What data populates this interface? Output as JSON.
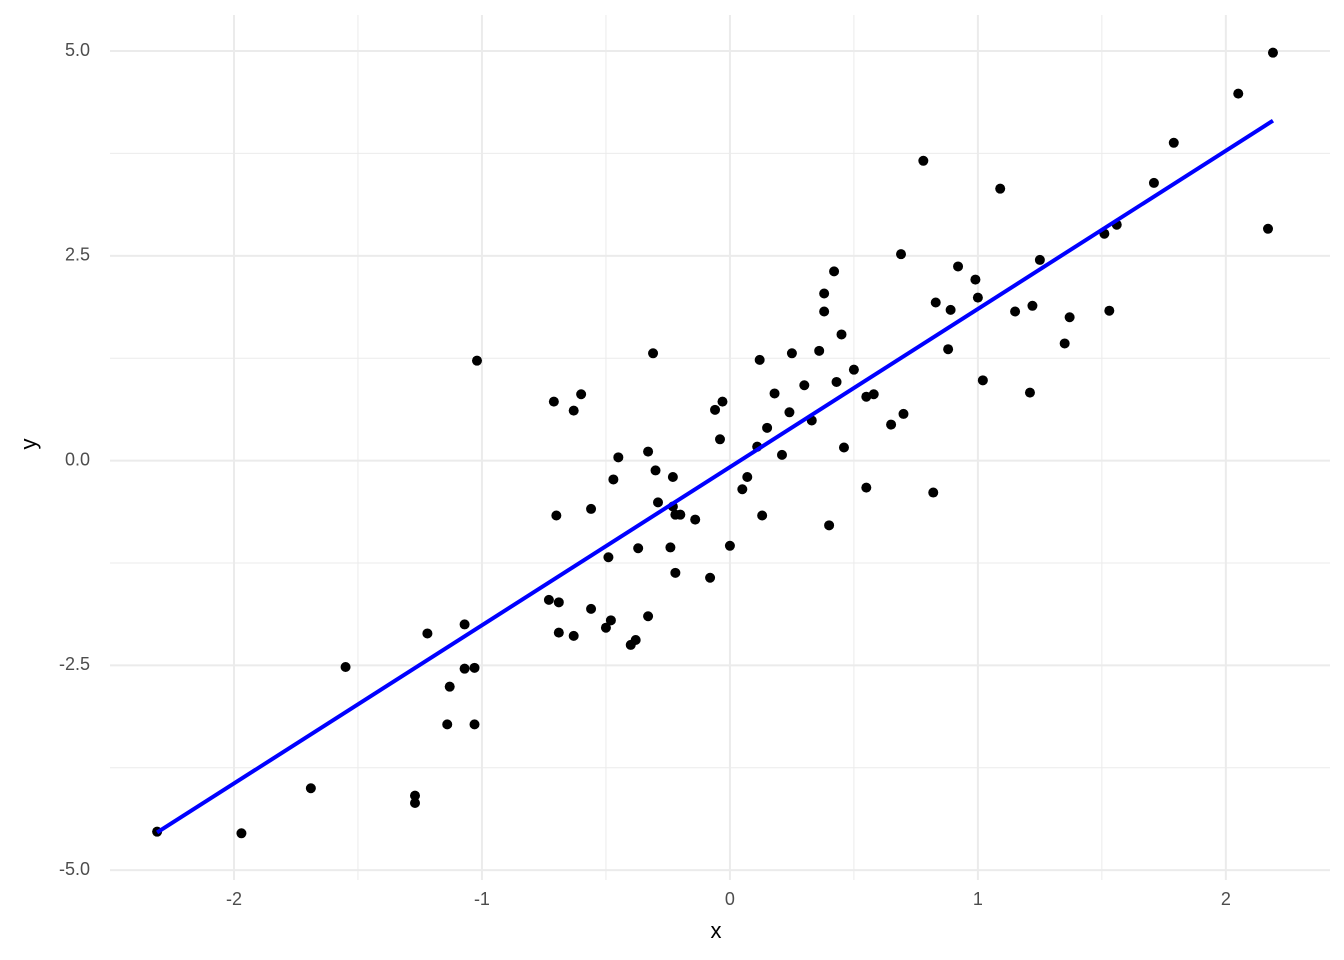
{
  "chart_data": {
    "type": "scatter",
    "x_label": "x",
    "y_label": "y",
    "xlim": [
      -2.5,
      2.42
    ],
    "ylim": [
      -5.12,
      5.44
    ],
    "xticks": [
      -2,
      -1,
      0,
      1,
      2
    ],
    "yticks": [
      {
        "value": -5,
        "label": "-5.0"
      },
      -2.5,
      {
        "value": 0,
        "label": "0.0"
      },
      2.5,
      {
        "value": 5,
        "label": "5.0"
      }
    ],
    "x_minor_grid": [
      -1.5,
      -0.5,
      0.5,
      1.5
    ],
    "y_minor_grid": [
      -3.75,
      -1.25,
      1.25,
      3.75
    ],
    "grid": true,
    "series": [
      {
        "type": "scatter",
        "color": "#000000",
        "x": [
          -2.31,
          -1.97,
          -1.69,
          -1.55,
          -1.27,
          -1.27,
          -1.22,
          -1.14,
          -1.13,
          -1.07,
          -1.07,
          -1.03,
          -1.03,
          -1.02,
          -0.73,
          -0.71,
          -0.7,
          -0.69,
          -0.69,
          -0.63,
          -0.63,
          -0.6,
          -0.56,
          -0.56,
          -0.5,
          -0.49,
          -0.48,
          -0.47,
          -0.45,
          -0.4,
          -0.38,
          -0.37,
          -0.33,
          -0.33,
          -0.31,
          -0.3,
          -0.29,
          -0.24,
          -0.23,
          -0.23,
          -0.22,
          -0.22,
          -0.2,
          -0.14,
          -0.08,
          -0.06,
          -0.04,
          -0.03,
          0.0,
          0.05,
          0.07,
          0.11,
          0.12,
          0.13,
          0.15,
          0.18,
          0.21,
          0.24,
          0.25,
          0.3,
          0.33,
          0.36,
          0.38,
          0.38,
          0.4,
          0.42,
          0.43,
          0.45,
          0.46,
          0.5,
          0.55,
          0.55,
          0.58,
          0.65,
          0.69,
          0.7,
          0.78,
          0.82,
          0.83,
          0.88,
          0.89,
          0.92,
          0.99,
          1.0,
          1.02,
          1.09,
          1.15,
          1.21,
          1.22,
          1.25,
          1.35,
          1.37,
          1.51,
          1.53,
          1.56,
          1.71,
          1.79,
          2.05,
          2.17,
          2.19
        ],
        "values": [
          -4.53,
          -4.55,
          -4.0,
          -2.52,
          -4.09,
          -4.18,
          -2.11,
          -3.22,
          -2.76,
          -2.54,
          -2.0,
          -2.53,
          -3.22,
          1.22,
          -1.7,
          0.72,
          -0.67,
          -1.73,
          -2.1,
          -2.14,
          0.61,
          0.81,
          -1.81,
          -0.59,
          -2.04,
          -1.18,
          -1.95,
          -0.23,
          0.04,
          -2.25,
          -2.19,
          -1.07,
          -1.9,
          0.11,
          1.31,
          -0.12,
          -0.51,
          -1.06,
          -0.2,
          -0.56,
          -1.37,
          -0.66,
          -0.66,
          -0.72,
          -1.43,
          0.62,
          0.26,
          0.72,
          -1.04,
          -0.35,
          -0.2,
          0.17,
          1.23,
          -0.67,
          0.4,
          0.82,
          0.07,
          0.59,
          1.31,
          0.92,
          0.49,
          1.34,
          1.82,
          2.04,
          -0.79,
          2.31,
          0.96,
          1.54,
          0.16,
          1.11,
          0.78,
          -0.33,
          0.81,
          0.44,
          2.52,
          0.57,
          3.66,
          -0.39,
          1.93,
          1.36,
          1.84,
          2.37,
          2.21,
          1.99,
          0.98,
          3.32,
          1.82,
          0.83,
          1.89,
          2.45,
          1.43,
          1.75,
          2.77,
          1.83,
          2.88,
          3.39,
          3.88,
          4.48,
          2.83,
          4.98
        ]
      },
      {
        "type": "line",
        "color": "#0000ff",
        "x": [
          -2.31,
          2.19
        ],
        "values": [
          -4.54,
          4.15
        ]
      }
    ]
  }
}
